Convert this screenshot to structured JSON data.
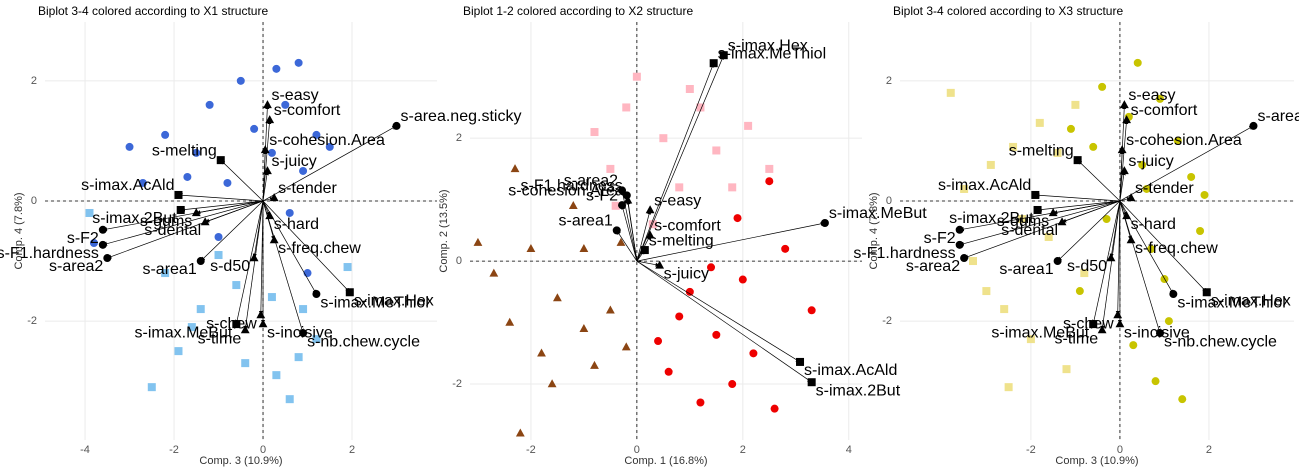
{
  "chart_data": [
    {
      "type": "biplot",
      "title": "Biplot 3-4 colored according to X1 structure",
      "x_label": "Comp. 3 (10.9%)",
      "y_label": "Comp. 4 (7.8%)",
      "xlim": [
        -4.9,
        3.91
      ],
      "ylim": [
        -3.98,
        2.98
      ],
      "xticks": [
        -4,
        -2,
        0,
        2
      ],
      "yticks": [
        -2,
        0,
        2
      ],
      "grid": true,
      "zero_lines": true,
      "series": [
        {
          "color": "#3c68d8",
          "marker": "circle",
          "x": [
            -0.5,
            0.3,
            0.8,
            -1.2,
            -2.2,
            -3.0,
            -1.5,
            0.5,
            1.2,
            -0.8,
            0.9,
            -2.7,
            -3.8,
            1.5,
            -0.2,
            0.6,
            -1.0,
            1.0,
            -1.7,
            0.2
          ],
          "y": [
            2.0,
            2.2,
            2.3,
            1.6,
            1.1,
            0.9,
            0.8,
            1.6,
            1.1,
            0.3,
            0.5,
            0.3,
            -0.7,
            0.9,
            1.2,
            -0.2,
            -0.6,
            -1.2,
            0.4,
            0.8
          ]
        },
        {
          "color": "#82c3ef",
          "marker": "square",
          "x": [
            -2.5,
            -1.9,
            -3.9,
            -1.4,
            0.3,
            0.8,
            1.9,
            -0.6,
            0.2,
            -1.0,
            -1.6,
            0.6,
            1.2,
            -2.2,
            -0.4,
            0.9
          ],
          "y": [
            -3.1,
            -2.5,
            -0.2,
            -1.8,
            -2.9,
            -2.6,
            -1.1,
            -1.4,
            -1.6,
            -0.9,
            -2.1,
            -3.3,
            -2.3,
            -1.2,
            -2.7,
            -1.8
          ]
        }
      ],
      "arrows": [
        {
          "name": "s-easy",
          "marker": "triangle",
          "x": 0.1,
          "y": 1.6
        },
        {
          "name": "s-area.neg.sticky",
          "marker": "circle",
          "x": 3.0,
          "y": 1.25
        },
        {
          "name": "s-comfort",
          "marker": "triangle",
          "x": 0.15,
          "y": 1.35
        },
        {
          "name": "s-melting",
          "marker": "square",
          "x": -0.95,
          "y": 0.68
        },
        {
          "name": "s-cohesion.Area",
          "marker": "triangle",
          "x": 0.05,
          "y": 0.85
        },
        {
          "name": "s-imax.AcAld",
          "marker": "square",
          "x": -1.9,
          "y": 0.1
        },
        {
          "name": "s-imax.2But",
          "marker": "square",
          "x": -1.85,
          "y": -0.15
        },
        {
          "name": "s-juicy",
          "marker": "triangle",
          "x": 0.1,
          "y": 0.5
        },
        {
          "name": "s-F2",
          "marker": "circle",
          "x": -3.6,
          "y": -0.48
        },
        {
          "name": "s-gums",
          "marker": "triangle",
          "x": -1.5,
          "y": -0.2
        },
        {
          "name": "s-tender",
          "marker": "triangle",
          "x": 0.25,
          "y": 0.05
        },
        {
          "name": "s-hard",
          "marker": "triangle",
          "x": 0.15,
          "y": -0.25
        },
        {
          "name": "s-dental",
          "marker": "triangle",
          "x": -1.3,
          "y": -0.35
        },
        {
          "name": "s-freq.chew",
          "marker": "triangle",
          "x": 0.25,
          "y": -0.65
        },
        {
          "name": "s-F1.hardness",
          "marker": "circle",
          "x": -3.6,
          "y": -0.73
        },
        {
          "name": "s-d50",
          "marker": "triangle",
          "x": -0.2,
          "y": -0.95
        },
        {
          "name": "s-area2",
          "marker": "circle",
          "x": -3.5,
          "y": -0.95
        },
        {
          "name": "s-area1",
          "marker": "circle",
          "x": -1.4,
          "y": -1.0
        },
        {
          "name": "s-imax.MeThiol",
          "marker": "circle",
          "x": 1.2,
          "y": -1.55
        },
        {
          "name": "s-imax.MeBut",
          "marker": "square",
          "x": -0.6,
          "y": -2.05
        },
        {
          "name": "s-chew",
          "marker": "triangle",
          "x": -0.05,
          "y": -1.9
        },
        {
          "name": "s-incisive",
          "marker": "triangle",
          "x": 0.0,
          "y": -2.05
        },
        {
          "name": "s-imax.Hex",
          "marker": "square",
          "x": 1.95,
          "y": -1.52
        },
        {
          "name": "s-nb.chew.cycle",
          "marker": "circle",
          "x": 0.9,
          "y": -2.2
        },
        {
          "name": "s-time",
          "marker": "triangle",
          "x": -0.4,
          "y": -2.15
        }
      ]
    },
    {
      "type": "biplot",
      "title": "Biplot 1-2 colored according to X2 structure",
      "x_label": "Comp. 1 (16.8%)",
      "y_label": "Comp. 2 (13.5%)",
      "xlim": [
        -3.15,
        4.25
      ],
      "ylim": [
        -2.91,
        3.89
      ],
      "xticks": [
        -2,
        0,
        2,
        4
      ],
      "yticks": [
        -2,
        0,
        2
      ],
      "grid": true,
      "zero_lines": true,
      "series": [
        {
          "color": "#8b4513",
          "marker": "triangle",
          "x": [
            -2.3,
            -2.0,
            -2.7,
            -1.5,
            -1.0,
            -1.8,
            -0.5,
            -2.4,
            -1.2,
            -0.8,
            -3.0,
            -1.6,
            -0.3,
            -2.2,
            -1.0,
            -0.2
          ],
          "y": [
            1.5,
            0.2,
            -0.2,
            -0.6,
            -1.1,
            -1.5,
            -0.8,
            -1.0,
            0.9,
            -1.7,
            0.3,
            -2.0,
            0.3,
            -2.8,
            0.2,
            -1.4
          ]
        },
        {
          "color": "#ffb6c1",
          "marker": "square",
          "x": [
            -0.5,
            0.5,
            1.0,
            -0.2,
            1.8,
            2.1,
            0.0,
            1.5,
            -0.8,
            0.8,
            2.5,
            0.3,
            1.2,
            -0.4
          ],
          "y": [
            1.5,
            2.0,
            2.8,
            2.5,
            1.2,
            2.2,
            3.0,
            1.8,
            2.1,
            1.2,
            1.5,
            0.6,
            2.5,
            0.9
          ]
        },
        {
          "color": "#ee0000",
          "marker": "circle",
          "x": [
            1.0,
            1.5,
            2.0,
            2.8,
            0.6,
            1.2,
            2.2,
            3.3,
            1.8,
            0.8,
            2.5,
            1.9,
            1.4,
            0.4,
            2.6
          ],
          "y": [
            -0.5,
            -1.2,
            -0.3,
            0.2,
            -1.8,
            -2.3,
            -1.5,
            -0.8,
            -2.0,
            -0.9,
            1.3,
            0.7,
            -0.1,
            -1.3,
            -2.4
          ]
        }
      ],
      "arrows": [
        {
          "name": "s-imax.Hex",
          "marker": "square",
          "x": 1.64,
          "y": 3.35
        },
        {
          "name": "s-imax.MeThiol",
          "marker": "square",
          "x": 1.45,
          "y": 3.22
        },
        {
          "name": "s-area2",
          "marker": "circle",
          "x": -0.28,
          "y": 1.15
        },
        {
          "name": "s-F1.hardness",
          "marker": "circle",
          "x": -0.19,
          "y": 1.07
        },
        {
          "name": "s-cohesion.Area",
          "marker": "triangle",
          "x": -0.17,
          "y": 0.99
        },
        {
          "name": "s-F2",
          "marker": "circle",
          "x": -0.28,
          "y": 0.91
        },
        {
          "name": "s-area1",
          "marker": "circle",
          "x": -0.38,
          "y": 0.5
        },
        {
          "name": "s-easy",
          "marker": "triangle",
          "x": 0.25,
          "y": 0.83
        },
        {
          "name": "s-comfort",
          "marker": "triangle",
          "x": 0.25,
          "y": 0.42
        },
        {
          "name": "s-melting",
          "marker": "square",
          "x": 0.15,
          "y": 0.18
        },
        {
          "name": "s-juicy",
          "marker": "triangle",
          "x": 0.43,
          "y": -0.07
        },
        {
          "name": "s-imax.MeBut",
          "marker": "circle",
          "x": 3.55,
          "y": 0.62
        },
        {
          "name": "s-imax.AcAld",
          "marker": "square",
          "x": 3.08,
          "y": -1.64
        },
        {
          "name": "s-imax.2But",
          "marker": "square",
          "x": 3.3,
          "y": -1.97
        }
      ]
    },
    {
      "type": "biplot",
      "title": "Biplot 3-4 colored according to X3 structure",
      "x_label": "Comp. 3 (10.9%)",
      "y_label": "Comp. 4 (7.8%)",
      "xlim": [
        -4.94,
        3.91
      ],
      "ylim": [
        -3.98,
        2.98
      ],
      "xticks": [
        -2,
        0,
        2
      ],
      "yticks": [
        -2,
        0,
        2
      ],
      "grid": true,
      "zero_lines": true,
      "series": [
        {
          "color": "#c8c400",
          "marker": "circle",
          "x": [
            -0.4,
            0.4,
            0.9,
            -1.1,
            1.3,
            0.5,
            1.6,
            -0.3,
            0.7,
            1.0,
            1.8,
            -0.6,
            0.2,
            1.1,
            0.8,
            1.4,
            -0.9,
            0.3,
            1.9,
            0.6
          ],
          "y": [
            1.9,
            2.3,
            1.7,
            1.2,
            1.0,
            0.6,
            0.4,
            -0.3,
            -0.8,
            -1.3,
            -0.5,
            0.9,
            1.4,
            -2.0,
            -3.0,
            -3.3,
            -1.5,
            -2.4,
            0.1,
            0.2
          ]
        },
        {
          "color": "#efe28c",
          "marker": "square",
          "x": [
            -2.5,
            -3.8,
            -2.9,
            -3.3,
            -1.8,
            -2.2,
            -1.4,
            -3.5,
            -2.6,
            -1.0,
            -1.6,
            -2.0,
            -3.0,
            -1.2,
            -2.4,
            -0.8
          ],
          "y": [
            -3.1,
            1.8,
            0.6,
            -1.0,
            1.3,
            -0.3,
            0.8,
            0.2,
            -1.8,
            1.6,
            -0.6,
            -2.3,
            -1.5,
            -2.8,
            0.9,
            -1.2
          ]
        }
      ],
      "arrows": [
        {
          "name": "s-easy",
          "marker": "triangle",
          "x": 0.1,
          "y": 1.6
        },
        {
          "name": "s-area.neg.sticky",
          "marker": "circle",
          "x": 3.0,
          "y": 1.25
        },
        {
          "name": "s-comfort",
          "marker": "triangle",
          "x": 0.15,
          "y": 1.35
        },
        {
          "name": "s-melting",
          "marker": "square",
          "x": -0.95,
          "y": 0.68
        },
        {
          "name": "s-cohesion.Area",
          "marker": "triangle",
          "x": 0.05,
          "y": 0.85
        },
        {
          "name": "s-imax.AcAld",
          "marker": "square",
          "x": -1.9,
          "y": 0.1
        },
        {
          "name": "s-imax.2But",
          "marker": "square",
          "x": -1.85,
          "y": -0.15
        },
        {
          "name": "s-juicy",
          "marker": "triangle",
          "x": 0.1,
          "y": 0.5
        },
        {
          "name": "s-F2",
          "marker": "circle",
          "x": -3.6,
          "y": -0.48
        },
        {
          "name": "s-gums",
          "marker": "triangle",
          "x": -1.5,
          "y": -0.2
        },
        {
          "name": "s-tender",
          "marker": "triangle",
          "x": 0.25,
          "y": 0.05
        },
        {
          "name": "s-hard",
          "marker": "triangle",
          "x": 0.15,
          "y": -0.25
        },
        {
          "name": "s-dental",
          "marker": "triangle",
          "x": -1.3,
          "y": -0.35
        },
        {
          "name": "s-freq.chew",
          "marker": "triangle",
          "x": 0.25,
          "y": -0.65
        },
        {
          "name": "s-F1.hardness",
          "marker": "circle",
          "x": -3.6,
          "y": -0.73
        },
        {
          "name": "s-d50",
          "marker": "triangle",
          "x": -0.2,
          "y": -0.95
        },
        {
          "name": "s-area2",
          "marker": "circle",
          "x": -3.5,
          "y": -0.95
        },
        {
          "name": "s-area1",
          "marker": "circle",
          "x": -1.4,
          "y": -1.0
        },
        {
          "name": "s-imax.MeThiol",
          "marker": "circle",
          "x": 1.2,
          "y": -1.55
        },
        {
          "name": "s-imax.MeBut",
          "marker": "square",
          "x": -0.6,
          "y": -2.05
        },
        {
          "name": "s-chew",
          "marker": "triangle",
          "x": -0.05,
          "y": -1.9
        },
        {
          "name": "s-incisive",
          "marker": "triangle",
          "x": 0.0,
          "y": -2.05
        },
        {
          "name": "s-imax.Hex",
          "marker": "square",
          "x": 1.95,
          "y": -1.52
        },
        {
          "name": "s-nb.chew.cycle",
          "marker": "circle",
          "x": 0.9,
          "y": -2.2
        },
        {
          "name": "s-time",
          "marker": "triangle",
          "x": -0.4,
          "y": -2.15
        }
      ]
    }
  ]
}
